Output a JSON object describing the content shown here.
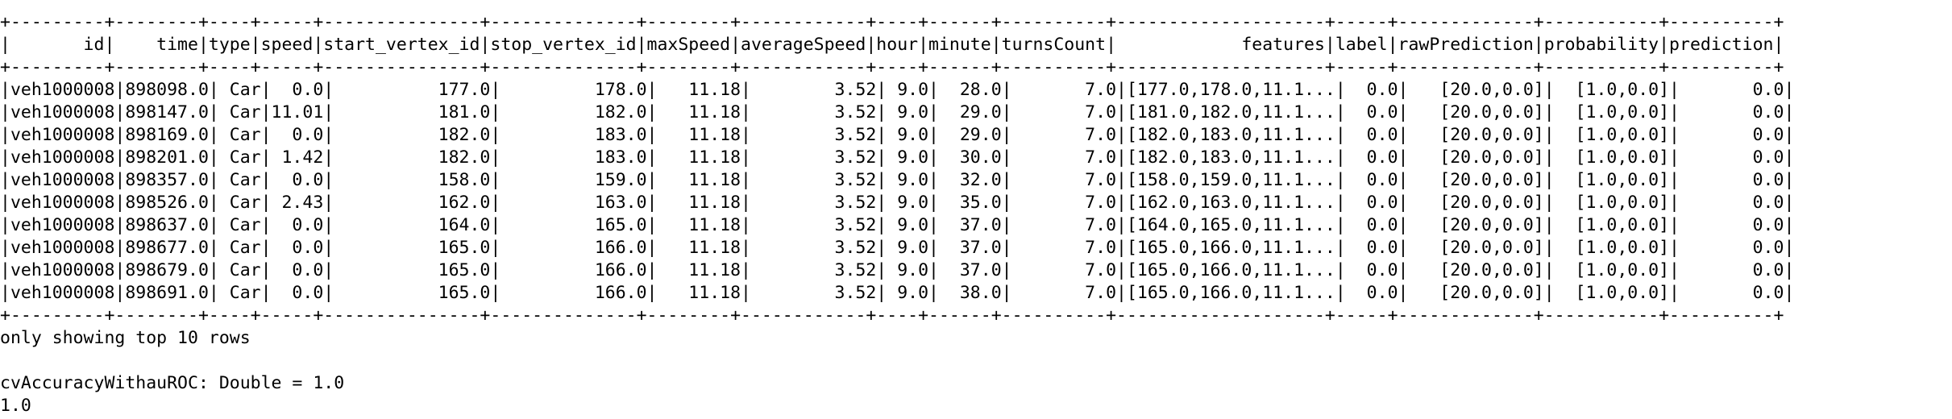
{
  "table": {
    "separator": "+---------+--------+----+-----+---------------+--------------+--------+------------+----+------+----------+--------------------+-----+-------------+-----------+----------+",
    "header": "|       id|    time|type|speed|start_vertex_id|stop_vertex_id|maxSpeed|averageSpeed|hour|minute|turnsCount|            features|label|rawPrediction|probability|prediction|",
    "rows": [
      "|veh1000008|898098.0| Car|  0.0|          177.0|         178.0|   11.18|        3.52| 9.0|  28.0|       7.0|[177.0,178.0,11.1...|  0.0|   [20.0,0.0]|  [1.0,0.0]|       0.0|",
      "|veh1000008|898147.0| Car|11.01|          181.0|         182.0|   11.18|        3.52| 9.0|  29.0|       7.0|[181.0,182.0,11.1...|  0.0|   [20.0,0.0]|  [1.0,0.0]|       0.0|",
      "|veh1000008|898169.0| Car|  0.0|          182.0|         183.0|   11.18|        3.52| 9.0|  29.0|       7.0|[182.0,183.0,11.1...|  0.0|   [20.0,0.0]|  [1.0,0.0]|       0.0|",
      "|veh1000008|898201.0| Car| 1.42|          182.0|         183.0|   11.18|        3.52| 9.0|  30.0|       7.0|[182.0,183.0,11.1...|  0.0|   [20.0,0.0]|  [1.0,0.0]|       0.0|",
      "|veh1000008|898357.0| Car|  0.0|          158.0|         159.0|   11.18|        3.52| 9.0|  32.0|       7.0|[158.0,159.0,11.1...|  0.0|   [20.0,0.0]|  [1.0,0.0]|       0.0|",
      "|veh1000008|898526.0| Car| 2.43|          162.0|         163.0|   11.18|        3.52| 9.0|  35.0|       7.0|[162.0,163.0,11.1...|  0.0|   [20.0,0.0]|  [1.0,0.0]|       0.0|",
      "|veh1000008|898637.0| Car|  0.0|          164.0|         165.0|   11.18|        3.52| 9.0|  37.0|       7.0|[164.0,165.0,11.1...|  0.0|   [20.0,0.0]|  [1.0,0.0]|       0.0|",
      "|veh1000008|898677.0| Car|  0.0|          165.0|         166.0|   11.18|        3.52| 9.0|  37.0|       7.0|[165.0,166.0,11.1...|  0.0|   [20.0,0.0]|  [1.0,0.0]|       0.0|",
      "|veh1000008|898679.0| Car|  0.0|          165.0|         166.0|   11.18|        3.52| 9.0|  37.0|       7.0|[165.0,166.0,11.1...|  0.0|   [20.0,0.0]|  [1.0,0.0]|       0.0|",
      "|veh1000008|898691.0| Car|  0.0|          165.0|         166.0|   11.18|        3.52| 9.0|  38.0|       7.0|[165.0,166.0,11.1...|  0.0|   [20.0,0.0]|  [1.0,0.0]|       0.0|"
    ]
  },
  "footer": {
    "rows_note": "only showing top 10 rows",
    "declaration": "cvAccuracyWithauROC: Double = 1.0",
    "result": "1.0"
  }
}
